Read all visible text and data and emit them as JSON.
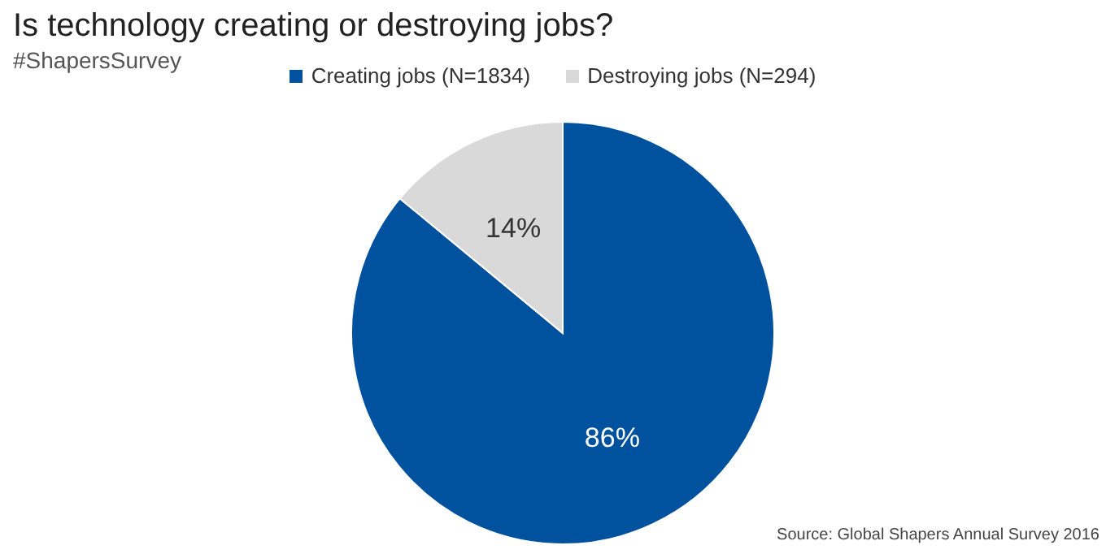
{
  "chart_data": {
    "type": "pie",
    "title": "Is technology creating or destroying jobs?",
    "subtitle": "#ShapersSurvey",
    "categories": [
      "Creating jobs (N=1834)",
      "Destroying jobs (N=294)"
    ],
    "values": [
      86,
      14
    ],
    "value_labels": [
      "86%",
      "14%"
    ],
    "colors": [
      "#00519e",
      "#d9d9d9"
    ],
    "legend": "top",
    "annotations": [
      "Source: Global Shapers Annual Survey 2016"
    ]
  }
}
